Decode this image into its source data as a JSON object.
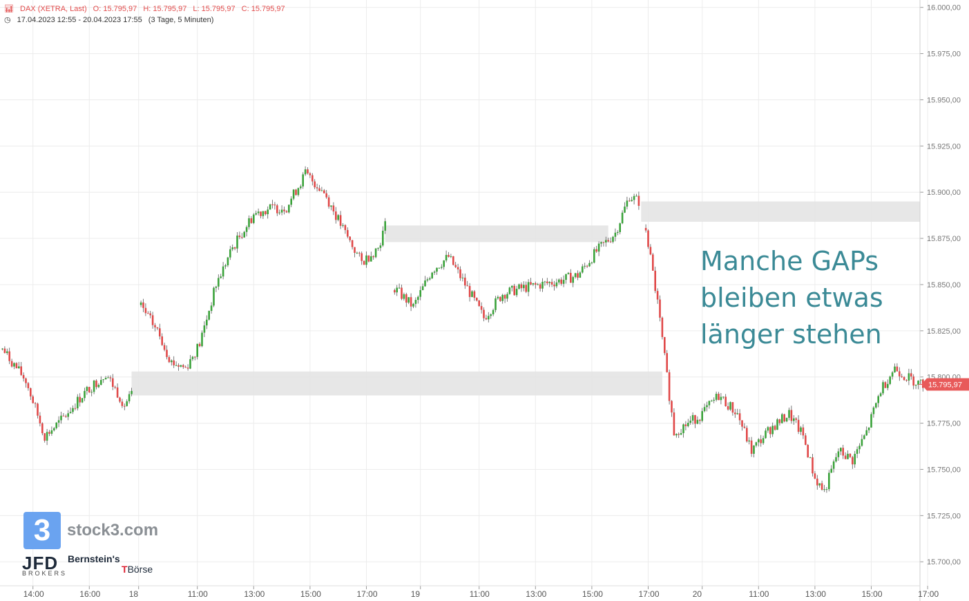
{
  "header": {
    "instrument": "DAX (XETRA, Last)",
    "open": "O: 15.795,97",
    "high": "H: 15.795,97",
    "low": "L: 15.795,97",
    "close": "C: 15.795,97",
    "range": "17.04.2023 12:55 - 20.04.2023 17:55",
    "interval": "(3 Tage, 5 Minuten)",
    "icon": "candlestick-chart-icon",
    "clock_icon": "clock-icon"
  },
  "annotation": [
    "Manche GAPs",
    "bleiben etwas",
    "länger stehen"
  ],
  "logos": {
    "stock3_mark": "3",
    "stock3": "stock3.com",
    "jfd": "JFD",
    "jfd_sub": "BROKERS",
    "bernstein": "Bernstein's",
    "boerse": "Börse"
  },
  "colors": {
    "up": "#3aa23a",
    "down": "#e04848",
    "gap_zone": "#e4e4e4",
    "price_tag": "#e85a5a",
    "annotation": "#3b8a96",
    "grid": "#ececec"
  },
  "chart_data": {
    "type": "candlestick",
    "ylim": [
      15687,
      16004
    ],
    "yticks": [
      "16.000,00",
      "15.975,00",
      "15.950,00",
      "15.925,00",
      "15.900,00",
      "15.875,00",
      "15.850,00",
      "15.825,00",
      "15.800,00",
      "15.775,00",
      "15.750,00",
      "15.725,00",
      "15.700,00"
    ],
    "ytick_values": [
      16000,
      15975,
      15950,
      15925,
      15900,
      15875,
      15850,
      15825,
      15800,
      15775,
      15750,
      15725,
      15700
    ],
    "xticks": [
      "14:00",
      "16:00",
      "18",
      "11:00",
      "13:00",
      "15:00",
      "17:00",
      "19",
      "11:00",
      "13:00",
      "15:00",
      "17:00",
      "20",
      "11:00",
      "13:00",
      "15:00",
      "17:00"
    ],
    "xtick_index": [
      13,
      37,
      58,
      83,
      107,
      131,
      155,
      178,
      203,
      227,
      251,
      275,
      298,
      322,
      346,
      370,
      394
    ],
    "last_price": "15.795,97",
    "last_value": 15795.97,
    "gap_zones": [
      {
        "from_index": 55,
        "to_index": 281,
        "low": 15790,
        "high": 15803
      },
      {
        "from_index": 163,
        "to_index": 258,
        "low": 15873,
        "high": 15882
      },
      {
        "from_index": 272,
        "to_index": 396,
        "low": 15884,
        "high": 15895
      }
    ],
    "days": [
      {
        "path": [
          [
            0,
            15815
          ],
          [
            10,
            15798
          ],
          [
            18,
            15768
          ],
          [
            24,
            15775
          ],
          [
            34,
            15790
          ],
          [
            44,
            15802
          ],
          [
            52,
            15785
          ],
          [
            55,
            15790
          ]
        ]
      },
      {
        "path": [
          [
            59,
            15838
          ],
          [
            66,
            15825
          ],
          [
            72,
            15808
          ],
          [
            78,
            15805
          ],
          [
            84,
            15818
          ],
          [
            91,
            15850
          ],
          [
            98,
            15870
          ],
          [
            107,
            15888
          ],
          [
            113,
            15891
          ],
          [
            121,
            15892
          ],
          [
            129,
            15910
          ],
          [
            137,
            15900
          ],
          [
            145,
            15880
          ],
          [
            153,
            15862
          ],
          [
            160,
            15870
          ],
          [
            163,
            15882
          ]
        ]
      },
      {
        "path": [
          [
            167,
            15848
          ],
          [
            175,
            15838
          ],
          [
            183,
            15858
          ],
          [
            190,
            15865
          ],
          [
            198,
            15848
          ],
          [
            205,
            15832
          ],
          [
            213,
            15845
          ],
          [
            221,
            15848
          ],
          [
            229,
            15850
          ],
          [
            237,
            15852
          ],
          [
            245,
            15855
          ],
          [
            253,
            15868
          ],
          [
            261,
            15878
          ],
          [
            267,
            15898
          ],
          [
            271,
            15895
          ]
        ]
      },
      {
        "path": [
          [
            274,
            15880
          ],
          [
            279,
            15840
          ],
          [
            283,
            15800
          ],
          [
            286,
            15770
          ],
          [
            292,
            15775
          ],
          [
            298,
            15780
          ],
          [
            305,
            15790
          ],
          [
            313,
            15780
          ],
          [
            319,
            15760
          ],
          [
            327,
            15772
          ],
          [
            335,
            15780
          ],
          [
            341,
            15768
          ],
          [
            346,
            15745
          ],
          [
            350,
            15738
          ],
          [
            356,
            15760
          ],
          [
            362,
            15755
          ],
          [
            368,
            15770
          ],
          [
            374,
            15793
          ],
          [
            380,
            15805
          ],
          [
            385,
            15800
          ],
          [
            390,
            15797
          ],
          [
            392,
            15796
          ]
        ]
      }
    ]
  }
}
